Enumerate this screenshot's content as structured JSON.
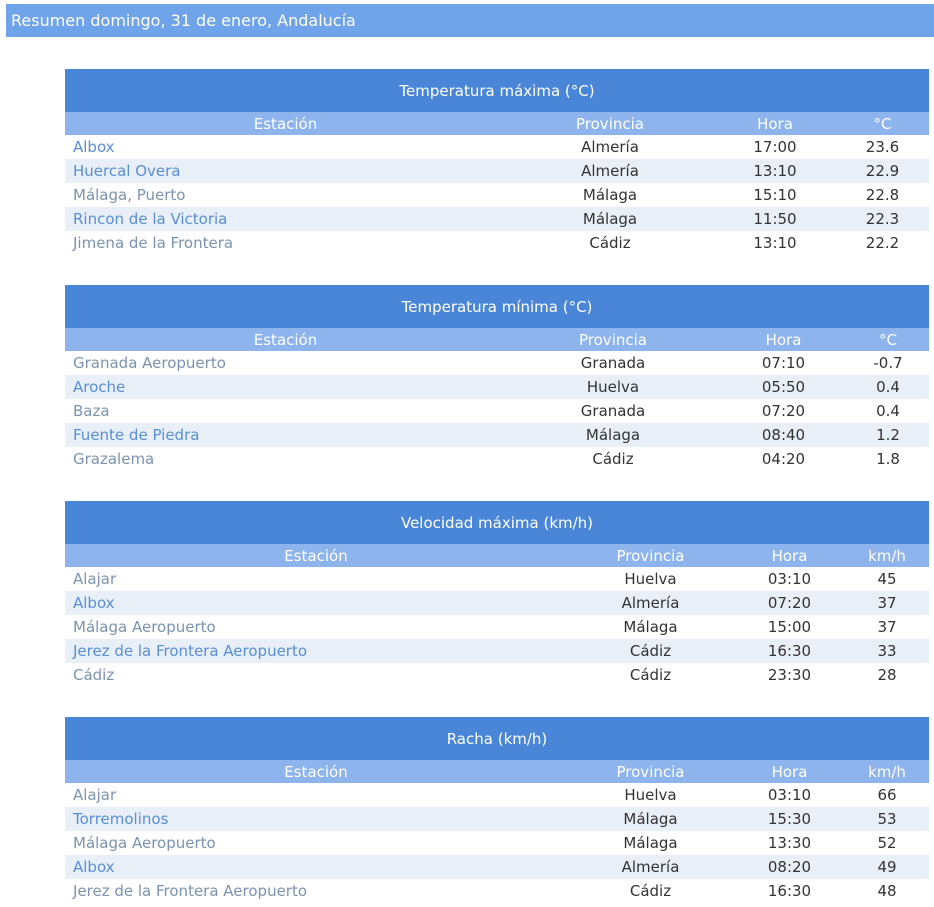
{
  "header": {
    "title": "Resumen domingo, 31 de enero, Andalucía"
  },
  "tables": [
    {
      "title": "Temperatura máxima (°C)",
      "columns": [
        "Estación",
        "Provincia",
        "Hora",
        "°C"
      ],
      "rows": [
        [
          "Albox",
          "Almería",
          "17:00",
          "23.6"
        ],
        [
          "Huercal Overa",
          "Almería",
          "13:10",
          "22.9"
        ],
        [
          "Málaga, Puerto",
          "Málaga",
          "15:10",
          "22.8"
        ],
        [
          "Rincon de la Victoria",
          "Málaga",
          "11:50",
          "22.3"
        ],
        [
          "Jimena de la Frontera",
          "Cádiz",
          "13:10",
          "22.2"
        ]
      ]
    },
    {
      "title": "Temperatura mínima (°C)",
      "columns": [
        "Estación",
        "Provincia",
        "Hora",
        "°C"
      ],
      "rows": [
        [
          "Granada Aeropuerto",
          "Granada",
          "07:10",
          "-0.7"
        ],
        [
          "Aroche",
          "Huelva",
          "05:50",
          "0.4"
        ],
        [
          "Baza",
          "Granada",
          "07:20",
          "0.4"
        ],
        [
          "Fuente de Piedra",
          "Málaga",
          "08:40",
          "1.2"
        ],
        [
          "Grazalema",
          "Cádiz",
          "04:20",
          "1.8"
        ]
      ]
    },
    {
      "title": "Velocidad máxima (km/h)",
      "columns": [
        "Estación",
        "Provincia",
        "Hora",
        "km/h"
      ],
      "rows": [
        [
          "Alajar",
          "Huelva",
          "03:10",
          "45"
        ],
        [
          "Albox",
          "Almería",
          "07:20",
          "37"
        ],
        [
          "Málaga Aeropuerto",
          "Málaga",
          "15:00",
          "37"
        ],
        [
          "Jerez de la Frontera Aeropuerto",
          "Cádiz",
          "16:30",
          "33"
        ],
        [
          "Cádiz",
          "Cádiz",
          "23:30",
          "28"
        ]
      ]
    },
    {
      "title": "Racha (km/h)",
      "columns": [
        "Estación",
        "Provincia",
        "Hora",
        "km/h"
      ],
      "rows": [
        [
          "Alajar",
          "Huelva",
          "03:10",
          "66"
        ],
        [
          "Torremolinos",
          "Málaga",
          "15:30",
          "53"
        ],
        [
          "Málaga Aeropuerto",
          "Málaga",
          "13:30",
          "52"
        ],
        [
          "Albox",
          "Almería",
          "08:20",
          "49"
        ],
        [
          "Jerez de la Frontera Aeropuerto",
          "Cádiz",
          "16:30",
          "48"
        ]
      ]
    }
  ]
}
